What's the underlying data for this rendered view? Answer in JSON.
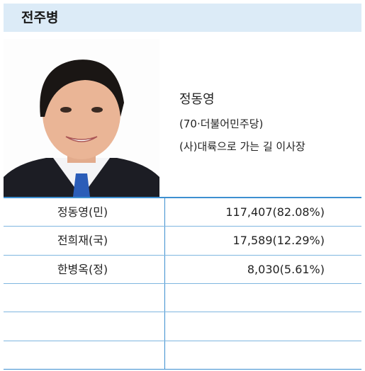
{
  "header": {
    "title": "전주병"
  },
  "candidate": {
    "name": "정동영",
    "lines": [
      "(70·더불어민주당)",
      "(사)대륙으로 가는 길 이사장"
    ]
  },
  "table": {
    "rows": [
      [
        "정동영(민)",
        "117,407(82.08%)"
      ],
      [
        "전희재(국)",
        "17,589(12.29%)"
      ],
      [
        "한병옥(정)",
        "8,030(5.61%)"
      ]
    ]
  }
}
